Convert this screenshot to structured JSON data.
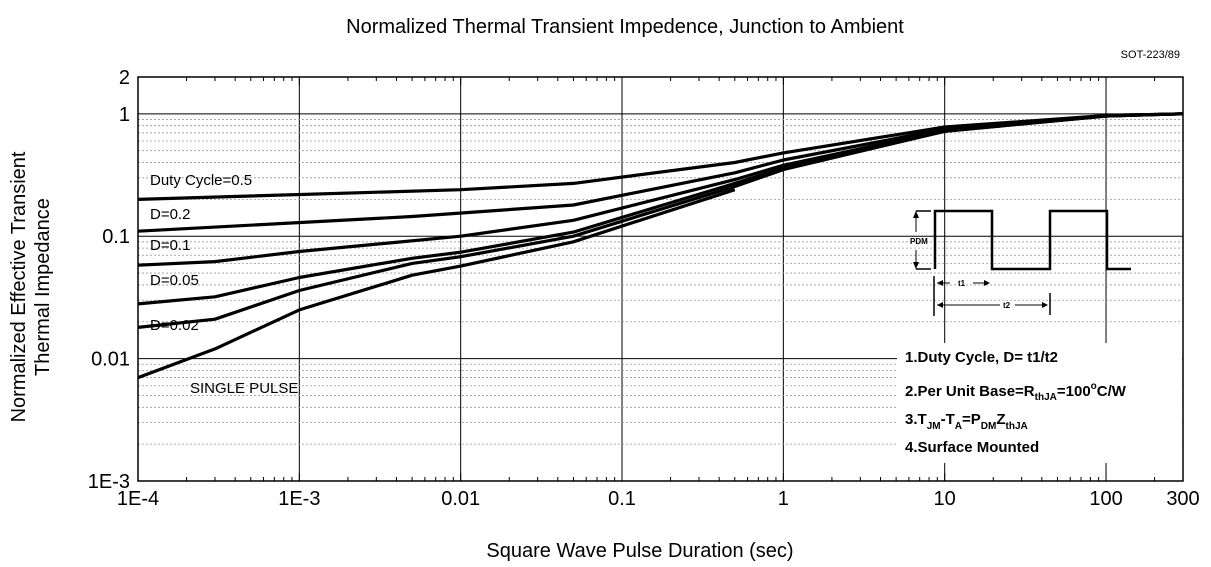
{
  "chart_data": {
    "type": "line",
    "title": "Normalized Thermal Transient Impedence, Junction to Ambient",
    "subtitle": "SOT-223/89",
    "xlabel": "Square Wave Pulse Duration (sec)",
    "ylabel": [
      "Normalized Effective Transient",
      "Thermal Impedance"
    ],
    "xscale": "log",
    "yscale": "log",
    "xlim": [
      0.0001,
      300
    ],
    "ylim": [
      0.001,
      2
    ],
    "xticks": [
      "1E-4",
      "1E-3",
      "0.01",
      "0.1",
      "1",
      "10",
      "100",
      "300"
    ],
    "yticks": [
      "2",
      "1",
      "0.1",
      "0.01",
      "1E-3"
    ],
    "grid": true,
    "series": [
      {
        "name": "Duty Cycle=0.5",
        "x": [
          0.0001,
          0.01,
          0.05,
          0.5,
          1,
          10,
          100,
          300
        ],
        "y": [
          0.2,
          0.24,
          0.27,
          0.4,
          0.48,
          0.78,
          0.97,
          1.0
        ]
      },
      {
        "name": "D=0.2",
        "x": [
          0.0001,
          0.005,
          0.05,
          0.5,
          1,
          10,
          100,
          300
        ],
        "y": [
          0.11,
          0.145,
          0.18,
          0.33,
          0.42,
          0.75,
          0.97,
          1.0
        ]
      },
      {
        "name": "D=0.1",
        "x": [
          0.0001,
          0.0003,
          0.001,
          0.01,
          0.05,
          0.5,
          1,
          10,
          100,
          300
        ],
        "y": [
          0.058,
          0.062,
          0.075,
          0.1,
          0.135,
          0.29,
          0.38,
          0.73,
          0.96,
          1.0
        ]
      },
      {
        "name": "D=0.05",
        "x": [
          0.0001,
          0.0003,
          0.001,
          0.005,
          0.01,
          0.05,
          0.5,
          1,
          10,
          100,
          300
        ],
        "y": [
          0.028,
          0.032,
          0.046,
          0.066,
          0.074,
          0.108,
          0.27,
          0.36,
          0.72,
          0.96,
          1.0
        ]
      },
      {
        "name": "D=0.02",
        "x": [
          0.0001,
          0.0003,
          0.001,
          0.005,
          0.01,
          0.05,
          0.5,
          1,
          10,
          100,
          300
        ],
        "y": [
          0.018,
          0.021,
          0.036,
          0.06,
          0.068,
          0.1,
          0.255,
          0.35,
          0.72,
          0.96,
          1.0
        ]
      },
      {
        "name": "SINGLE PULSE",
        "x": [
          0.0001,
          0.0003,
          0.001,
          0.005,
          0.01,
          0.05,
          0.5
        ],
        "y": [
          0.007,
          0.012,
          0.025,
          0.048,
          0.057,
          0.09,
          0.24
        ]
      }
    ],
    "labels": {
      "d05": "Duty Cycle=0.5",
      "d02": "D=0.2",
      "d01": "D=0.1",
      "d005": "D=0.05",
      "d002": "D=0.02",
      "single": "SINGLE PULSE"
    },
    "inset": {
      "pdm": "PDM",
      "t1": "t1",
      "t2": "t2"
    },
    "notes": {
      "n1": "1.Duty Cycle, D= t1/t2",
      "n2a": "2.Per Unit Base=R",
      "n2sub": "thJA",
      "n2b": "=100",
      "n2sup": "o",
      "n2c": "C/W",
      "n3a": "3.T",
      "n3b": "JM",
      "n3c": "-T",
      "n3d": "A",
      "n3e": "=P",
      "n3f": "DM",
      "n3g": "Z",
      "n3h": "thJA",
      "n4": "4.Surface Mounted"
    }
  }
}
